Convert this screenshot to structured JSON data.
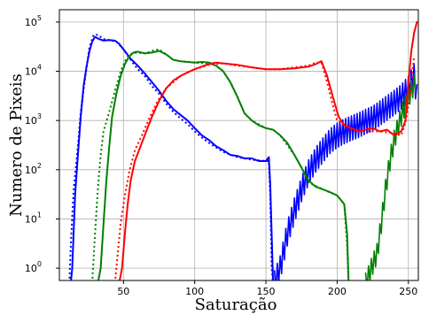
{
  "chart_data": {
    "type": "line",
    "title": "",
    "xlabel": "Saturação",
    "ylabel": "Numero de Pixeis",
    "xlim": [
      5,
      257
    ],
    "ylim_exponent": [
      -0.25,
      5.25
    ],
    "yscale": "log",
    "grid": true,
    "legend": "none",
    "x_ticks": [
      50,
      100,
      150,
      200,
      250
    ],
    "x_tick_labels": [
      "50",
      "100",
      "150",
      "200",
      "250"
    ],
    "y_ticks": [
      1,
      10,
      100,
      1000,
      10000,
      100000
    ],
    "y_tick_labels": [
      {
        "base": "10",
        "exp": "0"
      },
      {
        "base": "10",
        "exp": "1"
      },
      {
        "base": "10",
        "exp": "2"
      },
      {
        "base": "10",
        "exp": "3"
      },
      {
        "base": "10",
        "exp": "4"
      },
      {
        "base": "10",
        "exp": "5"
      }
    ],
    "series": [
      {
        "color": "#0000ff",
        "style": "solid",
        "points": [
          [
            13,
            0.5
          ],
          [
            14,
            1
          ],
          [
            16,
            30
          ],
          [
            18,
            200
          ],
          [
            20,
            1200
          ],
          [
            22,
            5000
          ],
          [
            24,
            12000
          ],
          [
            26,
            25000
          ],
          [
            28,
            40000
          ],
          [
            30,
            50000
          ],
          [
            33,
            45000
          ],
          [
            36,
            42000
          ],
          [
            40,
            43000
          ],
          [
            44,
            42000
          ],
          [
            47,
            36000
          ],
          [
            50,
            28000
          ],
          [
            55,
            18000
          ],
          [
            60,
            13000
          ],
          [
            65,
            9000
          ],
          [
            70,
            6000
          ],
          [
            75,
            4000
          ],
          [
            80,
            2500
          ],
          [
            85,
            1700
          ],
          [
            90,
            1300
          ],
          [
            95,
            1000
          ],
          [
            100,
            700
          ],
          [
            105,
            500
          ],
          [
            110,
            400
          ],
          [
            115,
            300
          ],
          [
            120,
            250
          ],
          [
            125,
            200
          ],
          [
            130,
            190
          ],
          [
            135,
            170
          ],
          [
            140,
            170
          ],
          [
            145,
            150
          ],
          [
            150,
            150
          ],
          [
            152,
            180
          ],
          [
            153,
            50
          ],
          [
            154,
            5
          ],
          [
            155,
            0.5
          ]
        ]
      },
      {
        "color": "#0000ff",
        "style": "dotted",
        "points": [
          [
            12,
            0.5
          ],
          [
            13,
            3
          ],
          [
            15,
            40
          ],
          [
            18,
            300
          ],
          [
            20,
            1500
          ],
          [
            23,
            7000
          ],
          [
            26,
            30000
          ],
          [
            29,
            55000
          ],
          [
            32,
            55000
          ],
          [
            36,
            45000
          ],
          [
            40,
            43000
          ],
          [
            45,
            40000
          ],
          [
            50,
            28000
          ],
          [
            55,
            17000
          ],
          [
            60,
            11000
          ],
          [
            65,
            8000
          ],
          [
            70,
            5000
          ],
          [
            75,
            3500
          ],
          [
            80,
            2200
          ],
          [
            85,
            1500
          ],
          [
            90,
            1100
          ],
          [
            95,
            850
          ],
          [
            100,
            600
          ],
          [
            105,
            450
          ],
          [
            110,
            350
          ],
          [
            120,
            230
          ],
          [
            130,
            180
          ],
          [
            140,
            160
          ],
          [
            150,
            150
          ],
          [
            152,
            150
          ],
          [
            153,
            30
          ],
          [
            154,
            1
          ],
          [
            155,
            0.5
          ]
        ]
      },
      {
        "color": "#0000ff",
        "style": "jagged",
        "points": [
          [
            156,
            0.5
          ],
          [
            160,
            1
          ],
          [
            165,
            5
          ],
          [
            170,
            15
          ],
          [
            175,
            40
          ],
          [
            180,
            90
          ],
          [
            185,
            160
          ],
          [
            190,
            250
          ],
          [
            195,
            380
          ],
          [
            200,
            500
          ],
          [
            205,
            600
          ],
          [
            210,
            700
          ],
          [
            215,
            800
          ],
          [
            220,
            950
          ],
          [
            225,
            1100
          ],
          [
            230,
            1400
          ],
          [
            235,
            1800
          ],
          [
            240,
            2300
          ],
          [
            245,
            3000
          ],
          [
            250,
            4500
          ],
          [
            254,
            8000
          ],
          [
            256,
            3000
          ]
        ],
        "amplitude": 0.25
      },
      {
        "color": "#008000",
        "style": "solid",
        "points": [
          [
            32,
            0.5
          ],
          [
            34,
            1
          ],
          [
            36,
            8
          ],
          [
            38,
            60
          ],
          [
            40,
            300
          ],
          [
            42,
            1200
          ],
          [
            45,
            3500
          ],
          [
            48,
            8000
          ],
          [
            51,
            14000
          ],
          [
            54,
            20000
          ],
          [
            57,
            24000
          ],
          [
            60,
            25000
          ],
          [
            65,
            23000
          ],
          [
            70,
            24000
          ],
          [
            75,
            26000
          ],
          [
            80,
            22000
          ],
          [
            85,
            17000
          ],
          [
            90,
            16000
          ],
          [
            95,
            15500
          ],
          [
            100,
            15000
          ],
          [
            105,
            15500
          ],
          [
            110,
            15000
          ],
          [
            115,
            13000
          ],
          [
            120,
            10000
          ],
          [
            125,
            6000
          ],
          [
            130,
            3000
          ],
          [
            135,
            1400
          ],
          [
            140,
            1000
          ],
          [
            145,
            800
          ],
          [
            150,
            700
          ],
          [
            155,
            650
          ],
          [
            160,
            500
          ],
          [
            165,
            350
          ],
          [
            170,
            200
          ],
          [
            175,
            110
          ],
          [
            180,
            60
          ],
          [
            185,
            45
          ],
          [
            190,
            40
          ],
          [
            195,
            35
          ],
          [
            200,
            30
          ],
          [
            205,
            20
          ],
          [
            207,
            5
          ],
          [
            208,
            0.5
          ]
        ]
      },
      {
        "color": "#008000",
        "style": "dotted",
        "points": [
          [
            28,
            0.5
          ],
          [
            30,
            5
          ],
          [
            32,
            40
          ],
          [
            34,
            200
          ],
          [
            36,
            600
          ],
          [
            40,
            1500
          ],
          [
            44,
            4000
          ],
          [
            48,
            10000
          ],
          [
            52,
            18000
          ],
          [
            56,
            23000
          ],
          [
            60,
            24000
          ],
          [
            65,
            23000
          ],
          [
            70,
            26000
          ],
          [
            75,
            28000
          ],
          [
            80,
            22000
          ],
          [
            85,
            17000
          ],
          [
            90,
            16000
          ],
          [
            100,
            15000
          ],
          [
            110,
            14500
          ],
          [
            115,
            13000
          ],
          [
            120,
            10000
          ],
          [
            125,
            6000
          ],
          [
            130,
            3000
          ],
          [
            135,
            1400
          ],
          [
            140,
            1000
          ],
          [
            150,
            700
          ],
          [
            155,
            650
          ],
          [
            160,
            500
          ],
          [
            170,
            200
          ],
          [
            175,
            110
          ],
          [
            180,
            55
          ],
          [
            190,
            40
          ],
          [
            200,
            30
          ],
          [
            205,
            20
          ],
          [
            207,
            3
          ],
          [
            208,
            0.5
          ]
        ]
      },
      {
        "color": "#008000",
        "style": "jagged",
        "points": [
          [
            220,
            0.5
          ],
          [
            224,
            1
          ],
          [
            228,
            2
          ],
          [
            231,
            8
          ],
          [
            234,
            40
          ],
          [
            237,
            150
          ],
          [
            240,
            400
          ],
          [
            243,
            800
          ],
          [
            246,
            1500
          ],
          [
            249,
            2500
          ],
          [
            252,
            4000
          ],
          [
            255,
            6000
          ]
        ],
        "amplitude": 0.2
      },
      {
        "color": "#ff0000",
        "style": "solid",
        "points": [
          [
            47,
            0.5
          ],
          [
            49,
            1
          ],
          [
            51,
            5
          ],
          [
            53,
            20
          ],
          [
            55,
            60
          ],
          [
            58,
            150
          ],
          [
            62,
            300
          ],
          [
            66,
            600
          ],
          [
            70,
            1200
          ],
          [
            75,
            2500
          ],
          [
            80,
            4500
          ],
          [
            85,
            6500
          ],
          [
            90,
            8000
          ],
          [
            95,
            9500
          ],
          [
            100,
            11000
          ],
          [
            105,
            12500
          ],
          [
            110,
            14000
          ],
          [
            115,
            15000
          ],
          [
            120,
            14500
          ],
          [
            130,
            13500
          ],
          [
            140,
            12000
          ],
          [
            150,
            11000
          ],
          [
            160,
            11000
          ],
          [
            170,
            11500
          ],
          [
            180,
            12500
          ],
          [
            185,
            14000
          ],
          [
            189,
            16000
          ],
          [
            193,
            8000
          ],
          [
            197,
            3000
          ],
          [
            201,
            1200
          ],
          [
            205,
            800
          ],
          [
            210,
            700
          ],
          [
            215,
            600
          ],
          [
            220,
            650
          ],
          [
            225,
            700
          ],
          [
            230,
            600
          ],
          [
            235,
            650
          ],
          [
            240,
            500
          ],
          [
            245,
            600
          ],
          [
            248,
            1000
          ],
          [
            250,
            6000
          ],
          [
            252,
            25000
          ],
          [
            254,
            60000
          ],
          [
            256,
            100000
          ]
        ]
      },
      {
        "color": "#ff0000",
        "style": "dotted",
        "points": [
          [
            44,
            0.5
          ],
          [
            46,
            2
          ],
          [
            48,
            8
          ],
          [
            51,
            30
          ],
          [
            54,
            90
          ],
          [
            58,
            250
          ],
          [
            63,
            500
          ],
          [
            68,
            1100
          ],
          [
            74,
            2500
          ],
          [
            80,
            4500
          ],
          [
            90,
            8000
          ],
          [
            100,
            11000
          ],
          [
            110,
            13500
          ],
          [
            120,
            14500
          ],
          [
            130,
            13000
          ],
          [
            140,
            12000
          ],
          [
            150,
            11000
          ],
          [
            160,
            11000
          ],
          [
            170,
            12000
          ],
          [
            180,
            13000
          ],
          [
            185,
            15000
          ],
          [
            189,
            15000
          ],
          [
            193,
            6000
          ],
          [
            197,
            2000
          ],
          [
            200,
            1000
          ],
          [
            205,
            800
          ],
          [
            210,
            650
          ],
          [
            220,
            600
          ],
          [
            230,
            600
          ],
          [
            240,
            550
          ],
          [
            245,
            500
          ],
          [
            248,
            900
          ],
          [
            251,
            3000
          ],
          [
            254,
            20000
          ]
        ]
      }
    ]
  }
}
